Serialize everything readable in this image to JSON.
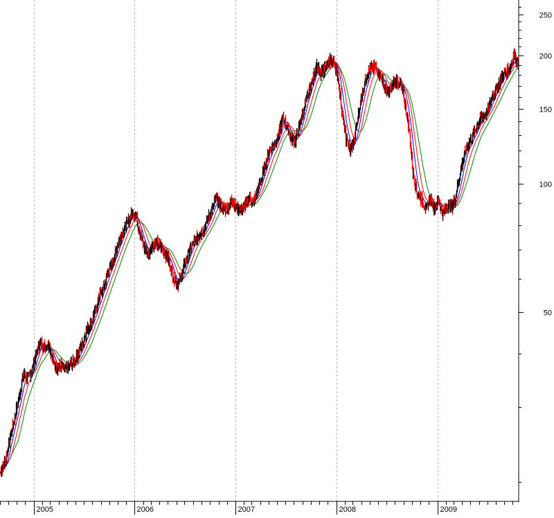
{
  "chart_data": {
    "type": "line",
    "title": "",
    "xlabel": "",
    "ylabel": "",
    "y_scale": "log",
    "ylim": [
      18,
      270
    ],
    "y_ticks": [
      250,
      200,
      150,
      100,
      50
    ],
    "x_ticks": [
      "2005",
      "2006",
      "2007",
      "2008",
      "2009"
    ],
    "x_domain": [
      "2004-09-01",
      "2009-10-20"
    ],
    "grid": "vertical dashed at year starts",
    "colors": {
      "candle_up": "#000000",
      "candle_down": "#ff0000",
      "ma_fast": "#0000ff",
      "ma_mid": "#ff0000",
      "ma_slow": "#008000"
    },
    "price_path": [
      [
        "2004-09-01",
        21
      ],
      [
        "2004-09-20",
        22.5
      ],
      [
        "2004-10-10",
        26
      ],
      [
        "2004-10-25",
        28.5
      ],
      [
        "2004-11-10",
        32
      ],
      [
        "2004-11-25",
        36
      ],
      [
        "2004-12-10",
        35
      ],
      [
        "2004-12-25",
        36.5
      ],
      [
        "2005-01-10",
        40
      ],
      [
        "2005-01-25",
        42.5
      ],
      [
        "2005-02-10",
        41.5
      ],
      [
        "2005-02-25",
        42
      ],
      [
        "2005-03-10",
        38.5
      ],
      [
        "2005-03-25",
        37
      ],
      [
        "2005-04-10",
        37.5
      ],
      [
        "2005-04-25",
        36.5
      ],
      [
        "2005-05-10",
        37.5
      ],
      [
        "2005-05-25",
        38
      ],
      [
        "2005-06-10",
        40
      ],
      [
        "2005-06-25",
        42
      ],
      [
        "2005-07-10",
        45
      ],
      [
        "2005-07-25",
        47
      ],
      [
        "2005-08-10",
        50
      ],
      [
        "2005-08-25",
        54
      ],
      [
        "2005-09-10",
        57
      ],
      [
        "2005-09-25",
        62
      ],
      [
        "2005-10-10",
        65
      ],
      [
        "2005-10-25",
        70
      ],
      [
        "2005-11-10",
        75
      ],
      [
        "2005-11-25",
        79
      ],
      [
        "2005-12-10",
        82
      ],
      [
        "2005-12-25",
        86
      ],
      [
        "2006-01-05",
        84
      ],
      [
        "2006-01-20",
        77
      ],
      [
        "2006-02-05",
        71
      ],
      [
        "2006-02-20",
        68
      ],
      [
        "2006-03-05",
        72
      ],
      [
        "2006-03-20",
        73
      ],
      [
        "2006-04-05",
        71
      ],
      [
        "2006-04-20",
        69
      ],
      [
        "2006-05-05",
        66
      ],
      [
        "2006-05-20",
        61
      ],
      [
        "2006-06-05",
        58
      ],
      [
        "2006-06-20",
        61
      ],
      [
        "2006-07-05",
        66
      ],
      [
        "2006-07-20",
        70
      ],
      [
        "2006-08-05",
        73
      ],
      [
        "2006-08-20",
        76
      ],
      [
        "2006-09-05",
        78
      ],
      [
        "2006-09-20",
        82
      ],
      [
        "2006-10-05",
        86
      ],
      [
        "2006-10-20",
        92
      ],
      [
        "2006-11-05",
        90
      ],
      [
        "2006-11-20",
        87
      ],
      [
        "2006-12-05",
        88
      ],
      [
        "2006-12-20",
        92
      ],
      [
        "2007-01-05",
        88
      ],
      [
        "2007-01-20",
        87
      ],
      [
        "2007-02-05",
        89
      ],
      [
        "2007-02-20",
        93
      ],
      [
        "2007-03-05",
        90
      ],
      [
        "2007-03-20",
        96
      ],
      [
        "2007-04-05",
        103
      ],
      [
        "2007-04-20",
        112
      ],
      [
        "2007-05-05",
        120
      ],
      [
        "2007-05-20",
        124
      ],
      [
        "2007-06-05",
        130
      ],
      [
        "2007-06-20",
        142
      ],
      [
        "2007-07-05",
        138
      ],
      [
        "2007-07-20",
        128
      ],
      [
        "2007-08-05",
        126
      ],
      [
        "2007-08-20",
        136
      ],
      [
        "2007-09-05",
        150
      ],
      [
        "2007-09-20",
        162
      ],
      [
        "2007-10-05",
        175
      ],
      [
        "2007-10-20",
        190
      ],
      [
        "2007-11-05",
        180
      ],
      [
        "2007-11-20",
        188
      ],
      [
        "2007-12-05",
        193
      ],
      [
        "2007-12-20",
        195
      ],
      [
        "2008-01-05",
        182
      ],
      [
        "2008-01-20",
        150
      ],
      [
        "2008-02-05",
        128
      ],
      [
        "2008-02-20",
        120
      ],
      [
        "2008-03-05",
        126
      ],
      [
        "2008-03-20",
        145
      ],
      [
        "2008-04-05",
        165
      ],
      [
        "2008-04-20",
        180
      ],
      [
        "2008-05-05",
        186
      ],
      [
        "2008-05-20",
        188
      ],
      [
        "2008-06-05",
        180
      ],
      [
        "2008-06-20",
        172
      ],
      [
        "2008-07-05",
        162
      ],
      [
        "2008-07-20",
        170
      ],
      [
        "2008-08-05",
        175
      ],
      [
        "2008-08-20",
        172
      ],
      [
        "2008-09-05",
        155
      ],
      [
        "2008-09-20",
        135
      ],
      [
        "2008-10-05",
        105
      ],
      [
        "2008-10-20",
        95
      ],
      [
        "2008-11-05",
        92
      ],
      [
        "2008-11-20",
        87
      ],
      [
        "2008-12-05",
        93
      ],
      [
        "2008-12-20",
        88
      ],
      [
        "2009-01-05",
        92
      ],
      [
        "2009-01-20",
        85
      ],
      [
        "2009-02-05",
        89
      ],
      [
        "2009-02-20",
        88
      ],
      [
        "2009-03-05",
        92
      ],
      [
        "2009-03-20",
        103
      ],
      [
        "2009-04-05",
        115
      ],
      [
        "2009-04-20",
        123
      ],
      [
        "2009-05-05",
        128
      ],
      [
        "2009-05-20",
        135
      ],
      [
        "2009-06-05",
        142
      ],
      [
        "2009-06-20",
        145
      ],
      [
        "2009-07-05",
        150
      ],
      [
        "2009-07-20",
        162
      ],
      [
        "2009-08-05",
        168
      ],
      [
        "2009-08-20",
        178
      ],
      [
        "2009-09-05",
        183
      ],
      [
        "2009-09-20",
        188
      ],
      [
        "2009-10-05",
        202
      ],
      [
        "2009-10-20",
        190
      ]
    ]
  }
}
